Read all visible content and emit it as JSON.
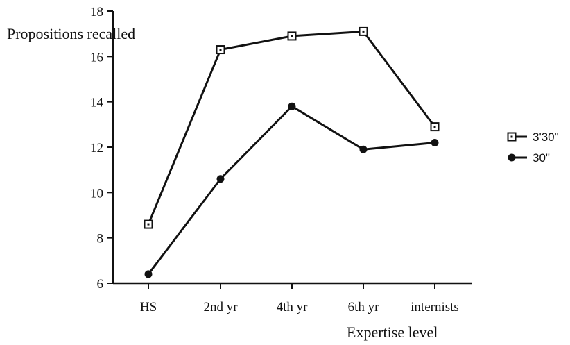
{
  "chart_data": {
    "type": "line",
    "title": "",
    "xlabel": "Expertise level",
    "ylabel": "Propositions recalled",
    "categories": [
      "HS",
      "2nd yr",
      "4th yr",
      "6th yr",
      "internists"
    ],
    "ylim": [
      6,
      18
    ],
    "yticks": [
      6,
      8,
      10,
      12,
      14,
      16,
      18
    ],
    "grid": false,
    "legend_position": "right",
    "series": [
      {
        "name": "3'30\"",
        "values": [
          8.6,
          16.3,
          16.9,
          17.1,
          12.9
        ],
        "marker": "open-square",
        "color": "#111111"
      },
      {
        "name": "30\"",
        "values": [
          6.4,
          10.6,
          13.8,
          11.9,
          12.2
        ],
        "marker": "filled-circle",
        "color": "#111111"
      }
    ]
  }
}
